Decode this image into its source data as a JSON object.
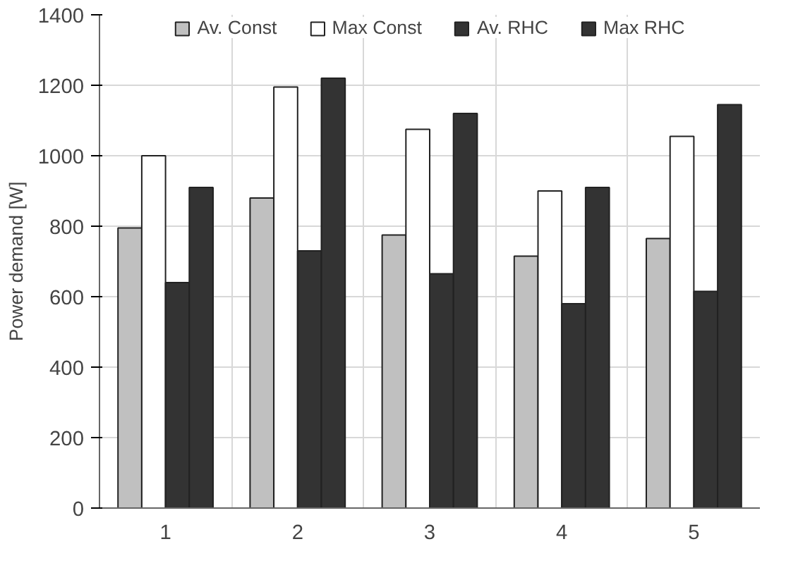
{
  "chart_data": {
    "type": "bar",
    "ylabel": "Power demand [W]",
    "categories": [
      "1",
      "2",
      "3",
      "4",
      "5"
    ],
    "series": [
      {
        "name": "Av. Const",
        "color": "#c0c0c0",
        "values": [
          795,
          880,
          775,
          715,
          765
        ]
      },
      {
        "name": "Max Const",
        "color": "#ffffff",
        "values": [
          1000,
          1195,
          1075,
          900,
          1055
        ]
      },
      {
        "name": "Av. RHC",
        "color": "#333333",
        "values": [
          640,
          730,
          665,
          580,
          615
        ]
      },
      {
        "name": "Max RHC",
        "color": "#333333",
        "values": [
          910,
          1220,
          1120,
          910,
          1145
        ]
      }
    ],
    "ylim": [
      0,
      1400
    ],
    "yticks": [
      0,
      200,
      400,
      600,
      800,
      1000,
      1200,
      1400
    ],
    "grid": true,
    "legend": "top"
  }
}
